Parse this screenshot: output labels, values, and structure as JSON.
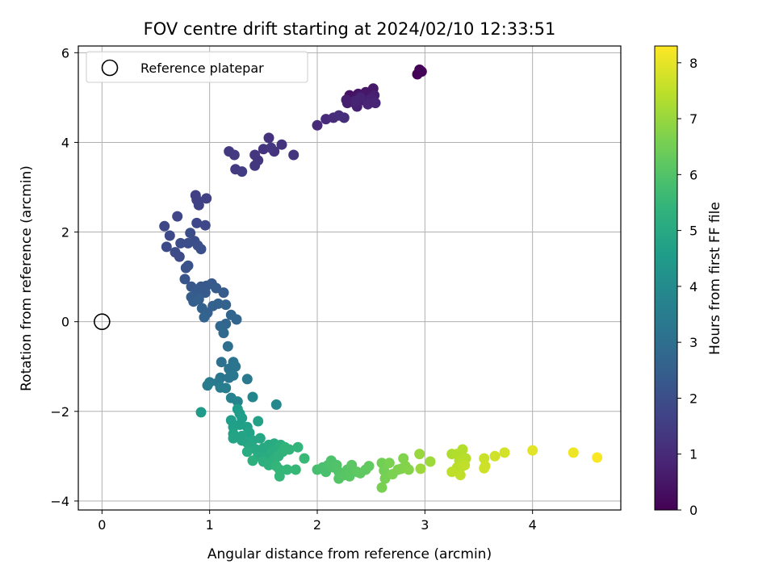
{
  "chart_data": {
    "type": "scatter",
    "title": "FOV centre drift starting at 2024/02/10 12:33:51",
    "xlabel": "Angular distance from reference (arcmin)",
    "ylabel": "Rotation from reference (arcmin)",
    "xlim": [
      -0.22,
      4.82
    ],
    "ylim": [
      -4.2,
      6.15
    ],
    "x_ticks": [
      0,
      1,
      2,
      3,
      4
    ],
    "y_ticks": [
      -4,
      -2,
      0,
      2,
      4,
      6
    ],
    "grid": true,
    "legend": {
      "position": "top-left",
      "label": "Reference platepar"
    },
    "reference_point": {
      "x": 0,
      "y": 0
    },
    "colorbar": {
      "label": "Hours from first FF file",
      "range": [
        0,
        8.3
      ],
      "ticks": [
        0,
        1,
        2,
        3,
        4,
        5,
        6,
        7,
        8
      ],
      "colormap": "viridis"
    },
    "points": [
      [
        2.93,
        5.52,
        0.05
      ],
      [
        2.95,
        5.62,
        0.08
      ],
      [
        2.97,
        5.58,
        0.1
      ],
      [
        2.3,
        5.05,
        0.4
      ],
      [
        2.38,
        5.08,
        0.45
      ],
      [
        2.45,
        5.12,
        0.5
      ],
      [
        2.52,
        5.2,
        0.55
      ],
      [
        2.33,
        4.9,
        0.6
      ],
      [
        2.42,
        4.95,
        0.65
      ],
      [
        2.53,
        5.05,
        0.7
      ],
      [
        2.28,
        4.88,
        0.72
      ],
      [
        2.37,
        4.8,
        0.75
      ],
      [
        2.5,
        4.98,
        0.78
      ],
      [
        2.4,
        5.0,
        0.8
      ],
      [
        2.35,
        4.92,
        0.82
      ],
      [
        2.47,
        4.85,
        0.85
      ],
      [
        2.54,
        4.88,
        0.87
      ],
      [
        2.27,
        4.95,
        0.7
      ],
      [
        2.0,
        4.38,
        1.0
      ],
      [
        2.08,
        4.52,
        1.02
      ],
      [
        2.15,
        4.55,
        1.05
      ],
      [
        2.2,
        4.6,
        1.08
      ],
      [
        2.25,
        4.55,
        1.1
      ],
      [
        1.55,
        4.1,
        1.2
      ],
      [
        1.6,
        3.8,
        1.22
      ],
      [
        1.67,
        3.95,
        1.25
      ],
      [
        1.5,
        3.85,
        1.27
      ],
      [
        1.42,
        3.72,
        1.3
      ],
      [
        1.45,
        3.6,
        1.32
      ],
      [
        1.42,
        3.48,
        1.35
      ],
      [
        1.57,
        3.88,
        1.33
      ],
      [
        1.78,
        3.72,
        1.28
      ],
      [
        1.18,
        3.8,
        1.4
      ],
      [
        1.23,
        3.72,
        1.42
      ],
      [
        1.24,
        3.4,
        1.45
      ],
      [
        1.3,
        3.35,
        1.48
      ],
      [
        0.87,
        2.82,
        1.6
      ],
      [
        0.88,
        2.72,
        1.62
      ],
      [
        0.97,
        2.75,
        1.65
      ],
      [
        0.9,
        2.6,
        1.66
      ],
      [
        0.58,
        2.13,
        1.75
      ],
      [
        0.7,
        2.35,
        1.78
      ],
      [
        0.88,
        2.2,
        1.8
      ],
      [
        0.96,
        2.15,
        1.82
      ],
      [
        0.63,
        1.92,
        1.85
      ],
      [
        0.6,
        1.67,
        1.88
      ],
      [
        0.68,
        1.55,
        1.9
      ],
      [
        0.72,
        1.45,
        1.92
      ],
      [
        0.73,
        1.75,
        1.95
      ],
      [
        0.8,
        1.75,
        1.97
      ],
      [
        0.82,
        1.98,
        1.99
      ],
      [
        0.86,
        1.8,
        2.0
      ],
      [
        0.89,
        1.7,
        2.02
      ],
      [
        0.92,
        1.62,
        2.05
      ],
      [
        0.78,
        1.2,
        2.1
      ],
      [
        0.8,
        1.25,
        2.12
      ],
      [
        0.77,
        0.95,
        2.18
      ],
      [
        0.83,
        0.78,
        2.25
      ],
      [
        0.92,
        0.78,
        2.27
      ],
      [
        0.97,
        0.8,
        2.3
      ],
      [
        1.02,
        0.85,
        2.32
      ],
      [
        0.88,
        0.7,
        2.35
      ],
      [
        0.96,
        0.65,
        2.38
      ],
      [
        1.06,
        0.75,
        2.4
      ],
      [
        1.13,
        0.65,
        2.42
      ],
      [
        0.83,
        0.55,
        2.45
      ],
      [
        0.85,
        0.45,
        2.47
      ],
      [
        0.9,
        0.5,
        2.5
      ],
      [
        0.93,
        0.3,
        2.52
      ],
      [
        0.98,
        0.2,
        2.55
      ],
      [
        1.03,
        0.35,
        2.57
      ],
      [
        1.08,
        0.4,
        2.6
      ],
      [
        1.15,
        0.38,
        2.62
      ],
      [
        0.95,
        0.1,
        2.65
      ],
      [
        1.2,
        0.15,
        2.68
      ],
      [
        1.25,
        0.05,
        2.7
      ],
      [
        1.15,
        -0.05,
        2.75
      ],
      [
        1.1,
        -0.1,
        2.78
      ],
      [
        1.13,
        -0.25,
        2.82
      ],
      [
        1.17,
        -0.55,
        3.0
      ],
      [
        1.11,
        -0.9,
        3.1
      ],
      [
        1.22,
        -0.9,
        3.15
      ],
      [
        1.18,
        -1.05,
        3.2
      ],
      [
        1.24,
        -1.0,
        3.22
      ],
      [
        1.1,
        -1.25,
        3.25
      ],
      [
        1.18,
        -1.25,
        3.28
      ],
      [
        1.22,
        -1.2,
        3.3
      ],
      [
        1.35,
        -1.28,
        3.32
      ],
      [
        1.08,
        -1.35,
        3.35
      ],
      [
        1.0,
        -1.35,
        3.4
      ],
      [
        0.98,
        -1.42,
        3.45
      ],
      [
        1.1,
        -1.47,
        3.5
      ],
      [
        1.15,
        -1.48,
        3.52
      ],
      [
        1.2,
        -1.7,
        3.7
      ],
      [
        1.26,
        -1.78,
        3.75
      ],
      [
        1.4,
        -1.68,
        3.8
      ],
      [
        1.62,
        -1.85,
        3.9
      ],
      [
        0.92,
        -2.02,
        4.5
      ],
      [
        1.26,
        -1.95,
        4.55
      ],
      [
        1.28,
        -2.05,
        4.58
      ],
      [
        1.3,
        -2.15,
        4.6
      ],
      [
        1.2,
        -2.2,
        4.62
      ],
      [
        1.28,
        -2.3,
        4.65
      ],
      [
        1.22,
        -2.35,
        4.68
      ],
      [
        1.35,
        -2.35,
        4.7
      ],
      [
        1.45,
        -2.22,
        4.72
      ],
      [
        1.37,
        -2.48,
        4.75
      ],
      [
        1.22,
        -2.5,
        4.78
      ],
      [
        1.3,
        -2.55,
        4.8
      ],
      [
        1.22,
        -2.6,
        4.82
      ],
      [
        1.3,
        -2.65,
        4.85
      ],
      [
        1.35,
        -2.7,
        4.88
      ],
      [
        1.4,
        -2.65,
        4.9
      ],
      [
        1.47,
        -2.6,
        4.92
      ],
      [
        1.38,
        -2.75,
        4.95
      ],
      [
        1.43,
        -2.85,
        4.98
      ],
      [
        1.5,
        -2.82,
        5.0
      ],
      [
        1.55,
        -2.75,
        5.02
      ],
      [
        1.6,
        -2.72,
        5.05
      ],
      [
        1.35,
        -2.9,
        5.08
      ],
      [
        1.45,
        -3.0,
        5.1
      ],
      [
        1.52,
        -3.02,
        5.12
      ],
      [
        1.58,
        -2.9,
        5.15
      ],
      [
        1.62,
        -2.85,
        5.18
      ],
      [
        1.66,
        -2.75,
        5.2
      ],
      [
        1.4,
        -3.1,
        5.22
      ],
      [
        1.5,
        -3.12,
        5.25
      ],
      [
        1.55,
        -3.2,
        5.28
      ],
      [
        1.6,
        -3.1,
        5.3
      ],
      [
        1.64,
        -3.0,
        5.32
      ],
      [
        1.68,
        -2.9,
        5.35
      ],
      [
        1.7,
        -2.8,
        5.38
      ],
      [
        1.74,
        -2.85,
        5.4
      ],
      [
        1.82,
        -2.8,
        5.42
      ],
      [
        1.62,
        -3.22,
        5.45
      ],
      [
        1.65,
        -3.3,
        5.48
      ],
      [
        1.65,
        -3.45,
        5.5
      ],
      [
        1.72,
        -3.3,
        5.52
      ],
      [
        1.8,
        -3.3,
        5.55
      ],
      [
        1.88,
        -3.05,
        5.58
      ],
      [
        2.0,
        -3.3,
        5.8
      ],
      [
        2.05,
        -3.25,
        5.85
      ],
      [
        2.08,
        -3.35,
        5.88
      ],
      [
        2.1,
        -3.2,
        5.9
      ],
      [
        2.13,
        -3.1,
        5.92
      ],
      [
        2.15,
        -3.25,
        5.95
      ],
      [
        2.18,
        -3.2,
        5.98
      ],
      [
        2.2,
        -3.35,
        6.0
      ],
      [
        2.2,
        -3.5,
        6.05
      ],
      [
        2.25,
        -3.42,
        6.08
      ],
      [
        2.28,
        -3.3,
        6.1
      ],
      [
        2.3,
        -3.45,
        6.12
      ],
      [
        2.32,
        -3.2,
        6.15
      ],
      [
        2.37,
        -3.35,
        6.18
      ],
      [
        2.4,
        -3.38,
        6.2
      ],
      [
        2.45,
        -3.3,
        6.22
      ],
      [
        2.48,
        -3.22,
        6.25
      ],
      [
        2.6,
        -3.15,
        6.5
      ],
      [
        2.62,
        -3.32,
        6.52
      ],
      [
        2.63,
        -3.5,
        6.55
      ],
      [
        2.6,
        -3.7,
        6.58
      ],
      [
        2.67,
        -3.15,
        6.6
      ],
      [
        2.7,
        -3.4,
        6.62
      ],
      [
        2.75,
        -3.3,
        6.65
      ],
      [
        2.78,
        -3.28,
        6.68
      ],
      [
        2.8,
        -3.05,
        6.7
      ],
      [
        2.82,
        -3.22,
        6.72
      ],
      [
        2.85,
        -3.3,
        6.75
      ],
      [
        2.95,
        -2.95,
        7.0
      ],
      [
        2.96,
        -3.28,
        7.05
      ],
      [
        3.05,
        -3.12,
        7.08
      ],
      [
        3.25,
        -2.95,
        7.3
      ],
      [
        3.3,
        -2.95,
        7.32
      ],
      [
        3.35,
        -2.85,
        7.35
      ],
      [
        3.32,
        -3.1,
        7.38
      ],
      [
        3.38,
        -3.05,
        7.4
      ],
      [
        3.3,
        -3.25,
        7.42
      ],
      [
        3.35,
        -3.22,
        7.45
      ],
      [
        3.25,
        -3.35,
        7.48
      ],
      [
        3.33,
        -3.42,
        7.5
      ],
      [
        3.37,
        -3.2,
        7.52
      ],
      [
        3.55,
        -3.05,
        7.65
      ],
      [
        3.56,
        -3.22,
        7.68
      ],
      [
        3.55,
        -3.27,
        7.7
      ],
      [
        3.65,
        -3.0,
        7.72
      ],
      [
        3.74,
        -2.92,
        7.75
      ],
      [
        4.0,
        -2.87,
        7.95
      ],
      [
        4.38,
        -2.92,
        8.1
      ],
      [
        4.6,
        -3.03,
        8.25
      ]
    ]
  }
}
